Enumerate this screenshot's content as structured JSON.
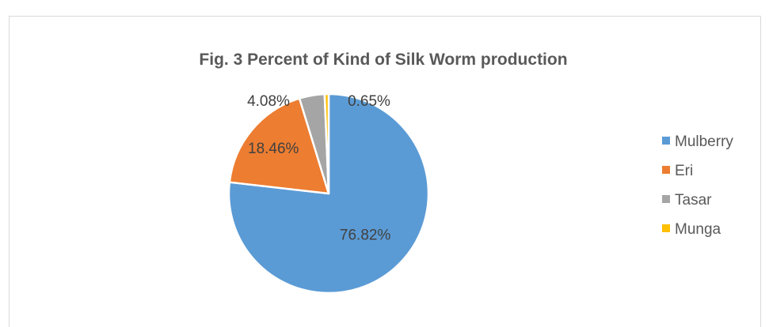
{
  "chart_data": {
    "type": "pie",
    "title": "Fig. 3 Percent of Kind of Silk Worm production",
    "categories": [
      "Mulberry",
      "Eri",
      "Tasar",
      "Munga"
    ],
    "values": [
      76.82,
      18.46,
      4.08,
      0.65
    ],
    "data_labels": [
      "76.82%",
      "18.46%",
      "4.08%",
      "0.65%"
    ],
    "colors": [
      "#5b9bd5",
      "#ed7d31",
      "#a5a5a5",
      "#ffc000"
    ],
    "legend": "right"
  }
}
